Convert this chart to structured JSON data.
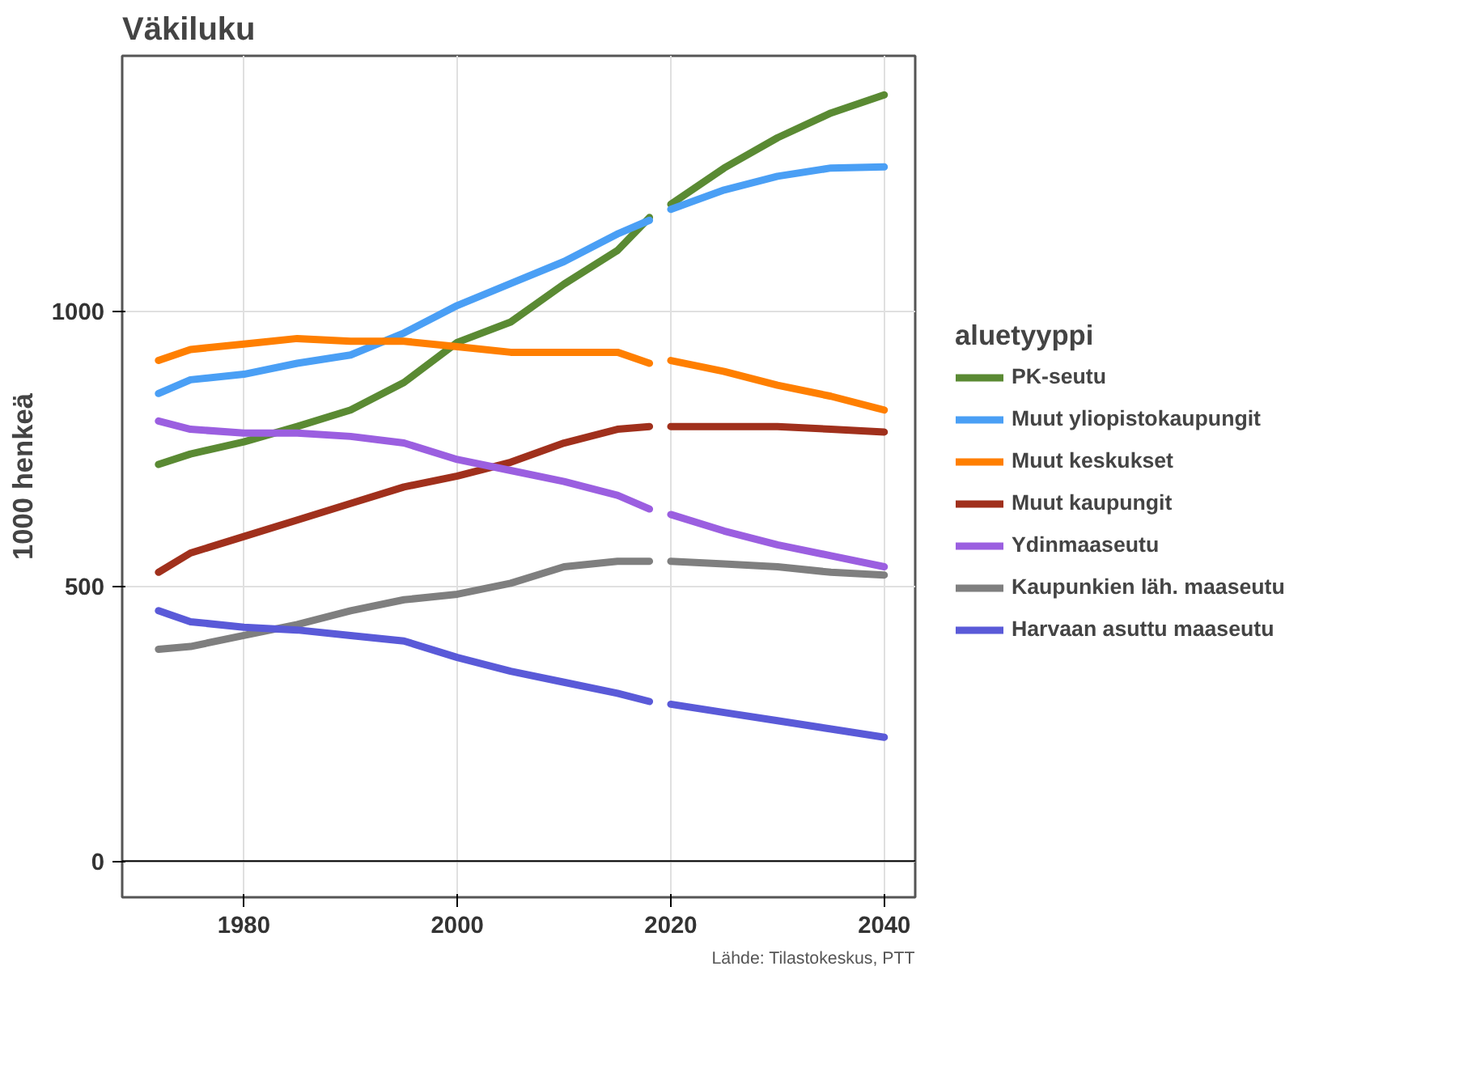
{
  "chart_data": {
    "type": "line",
    "title": "Väkiluku",
    "ylabel": "1000 henkeä",
    "legend_title": "aluetyyppi",
    "legend": "right",
    "grid": true,
    "line_style": "solid",
    "x": [
      1972,
      1975,
      1980,
      1985,
      1990,
      1995,
      2000,
      2005,
      2010,
      2015,
      2018,
      2019,
      2020,
      2025,
      2030,
      2035,
      2040
    ],
    "xlim": [
      1968.6,
      2042.9
    ],
    "ylim": [
      -66,
      1464
    ],
    "xticks": [
      1980,
      2000,
      2020,
      2040
    ],
    "yticks": [
      0,
      500,
      1000
    ],
    "series": [
      {
        "name": "PK-seutu",
        "color": "#5a8a33",
        "values": [
          721,
          740,
          762,
          790,
          820,
          870,
          943,
          980,
          1049,
          1110,
          1170,
          null,
          1194,
          1260,
          1315,
          1360,
          1393
        ]
      },
      {
        "name": "Muut yliopistokaupungit",
        "color": "#4a9ff5",
        "values": [
          850,
          875,
          885,
          905,
          920,
          960,
          1010,
          1050,
          1090,
          1140,
          1165,
          null,
          1185,
          1220,
          1245,
          1260,
          1262
        ]
      },
      {
        "name": "Muut keskukset",
        "color": "#ff7f00",
        "values": [
          910,
          930,
          940,
          950,
          945,
          945,
          935,
          925,
          925,
          925,
          905,
          null,
          910,
          890,
          865,
          845,
          820
        ]
      },
      {
        "name": "Muut kaupungit",
        "color": "#a0301c",
        "values": [
          525,
          560,
          590,
          620,
          650,
          680,
          700,
          725,
          760,
          785,
          790,
          null,
          790,
          790,
          790,
          785,
          780
        ]
      },
      {
        "name": "Ydinmaaseutu",
        "color": "#9b5fe0",
        "values": [
          800,
          785,
          778,
          778,
          772,
          760,
          730,
          710,
          690,
          665,
          640,
          null,
          630,
          600,
          575,
          555,
          535
        ]
      },
      {
        "name": "Kaupunkien läh. maaseutu",
        "color": "#7f7f7f",
        "values": [
          385,
          390,
          410,
          430,
          455,
          475,
          485,
          505,
          535,
          545,
          545,
          null,
          545,
          540,
          535,
          525,
          520
        ]
      },
      {
        "name": "Harvaan asuttu maaseutu",
        "color": "#5a5ad8",
        "values": [
          455,
          435,
          425,
          420,
          410,
          400,
          370,
          345,
          325,
          305,
          290,
          null,
          285,
          270,
          255,
          240,
          225
        ]
      }
    ],
    "ref_lines": [
      {
        "axis": "y",
        "value": 0,
        "color": "#000000"
      }
    ],
    "annotations": [
      "Lähde: Tilastokeskus, PTT"
    ]
  }
}
